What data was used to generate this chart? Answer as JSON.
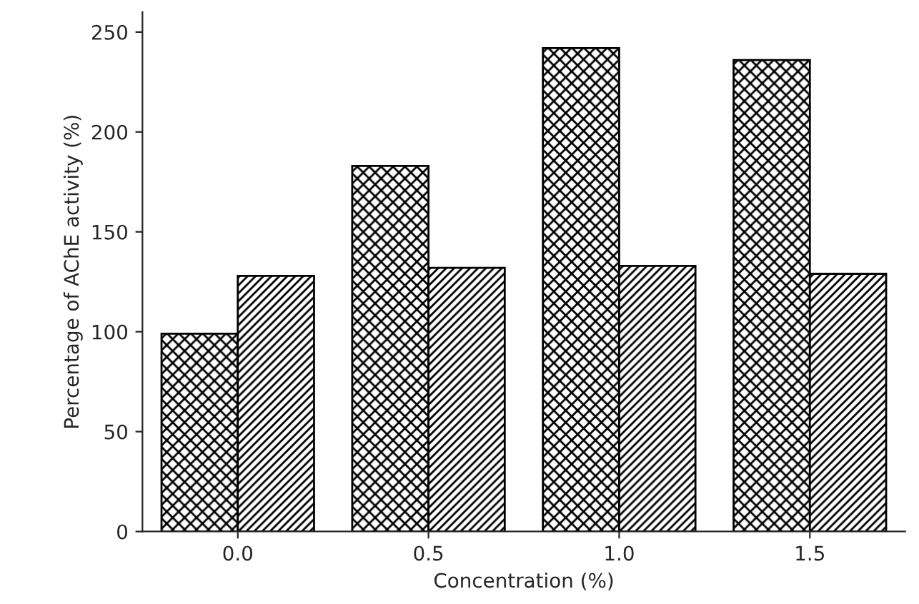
{
  "chart_data": {
    "type": "bar",
    "xlabel": "Concentration (%)",
    "ylabel": "Percentage of AChE activity (%)",
    "categories": [
      "0.0",
      "0.5",
      "1.0",
      "1.5"
    ],
    "series": [
      {
        "color": "#000000",
        "values": [
          99,
          183,
          242,
          236
        ]
      },
      {
        "color": "#000000",
        "values": [
          128,
          132,
          133,
          129
        ]
      }
    ],
    "ylim": [
      0,
      260
    ],
    "yticks": [
      0,
      50,
      100,
      150,
      200,
      250
    ],
    "grid": false,
    "legend": false
  }
}
